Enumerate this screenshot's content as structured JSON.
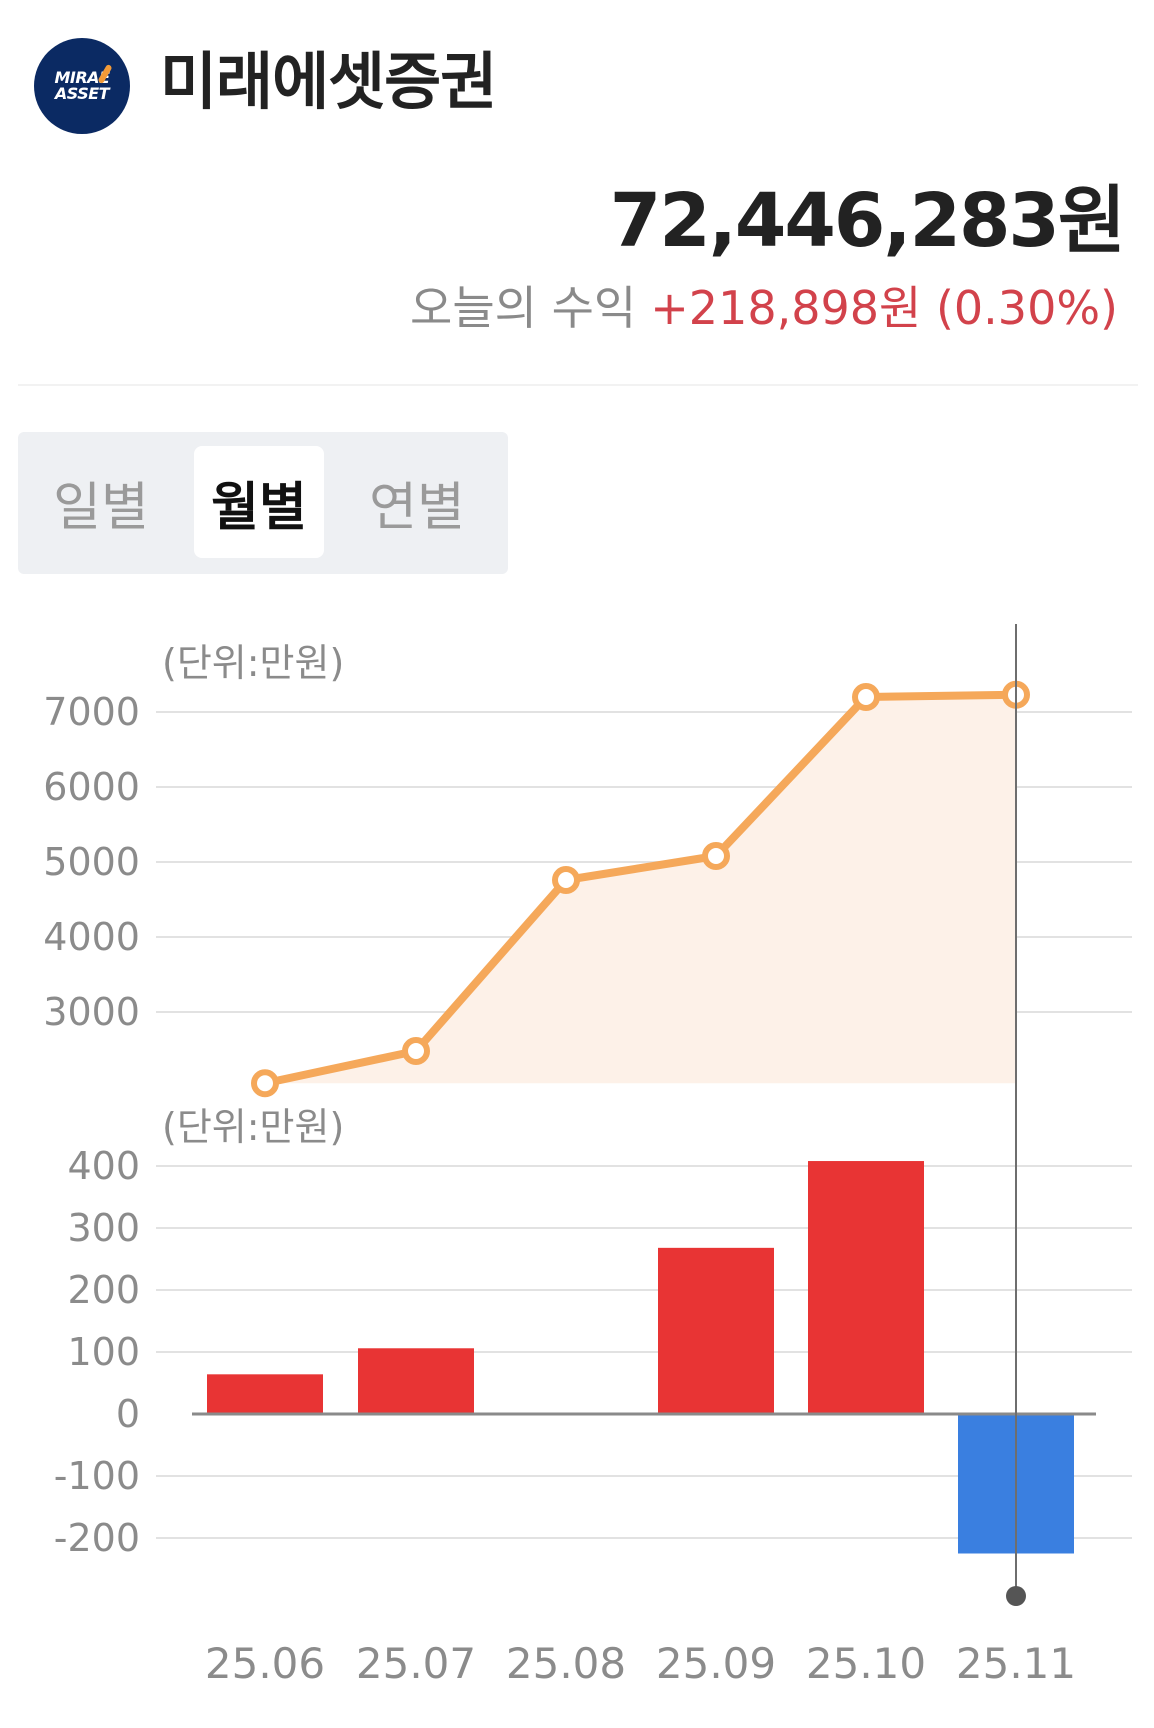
{
  "header": {
    "logo_text_line1": "MIRAE",
    "logo_text_line2": "ASSET",
    "brand": "미래에셋증권"
  },
  "summary": {
    "total_value": "72,446,283원",
    "today_profit_label": "오늘의 수익",
    "today_profit_value": "+218,898원 (0.30%)"
  },
  "tabs": [
    {
      "label": "일별",
      "active": false
    },
    {
      "label": "월별",
      "active": true
    },
    {
      "label": "연별",
      "active": false
    }
  ],
  "colors": {
    "line": "#f5a85a",
    "area": "#fdf1e8",
    "positive_bar": "#e83434",
    "negative_bar": "#3a7fe0",
    "profit_text": "#d2424b"
  },
  "chart_data": [
    {
      "type": "line",
      "unit_label": "(단위:만원)",
      "categories": [
        "25.06",
        "25.07",
        "25.08",
        "25.09",
        "25.10",
        "25.11"
      ],
      "values": [
        2050,
        2480,
        4760,
        5080,
        7200,
        7230
      ],
      "yticks": [
        3000,
        4000,
        5000,
        6000,
        7000
      ],
      "ylim": [
        2050,
        7200
      ],
      "grid": true,
      "area_fill": true
    },
    {
      "type": "bar",
      "unit_label": "(단위:만원)",
      "categories": [
        "25.06",
        "25.07",
        "25.08",
        "25.09",
        "25.10",
        "25.11"
      ],
      "values": [
        64,
        106,
        2,
        268,
        408,
        -225
      ],
      "yticks": [
        400,
        300,
        200,
        100,
        0,
        -100,
        -200
      ],
      "ylim": [
        -200,
        400
      ],
      "grid": true,
      "selected_category": "25.11"
    }
  ]
}
